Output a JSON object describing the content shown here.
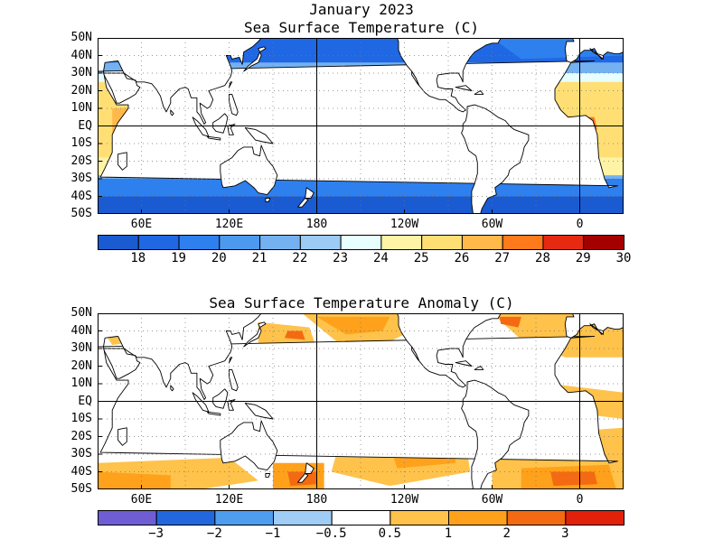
{
  "header": {
    "line1": "January 2023",
    "line2": "Sea Surface Temperature (C)"
  },
  "anomaly_title": "Sea Surface Temperature Anomaly (C)",
  "lat_labels": [
    "50N",
    "40N",
    "30N",
    "20N",
    "10N",
    "EQ",
    "10S",
    "20S",
    "30S",
    "40S",
    "50S"
  ],
  "lon_labels": [
    {
      "lon": 60,
      "text": "60E"
    },
    {
      "lon": 120,
      "text": "120E"
    },
    {
      "lon": 180,
      "text": "180"
    },
    {
      "lon": 240,
      "text": "120W"
    },
    {
      "lon": 300,
      "text": "60W"
    },
    {
      "lon": 360,
      "text": "0"
    }
  ],
  "map_extent": {
    "lon_min": 30,
    "lon_max": 390,
    "lat_min": -50,
    "lat_max": 50
  },
  "sst_colorbar": {
    "colors": [
      "#1a5bd1",
      "#2068e3",
      "#2e80ee",
      "#4c9aef",
      "#74b1f1",
      "#9ccbf5",
      "#e7ffff",
      "#fff4a6",
      "#ffdf74",
      "#ffb84a",
      "#ff7a1a",
      "#e62a12",
      "#a50000"
    ],
    "labels": [
      "18",
      "19",
      "20",
      "21",
      "22",
      "23",
      "24",
      "25",
      "26",
      "27",
      "28",
      "29",
      "30"
    ]
  },
  "anom_colorbar": {
    "colors": [
      "#6f5dd3",
      "#2267dd",
      "#4f9def",
      "#9fcdf6",
      "#ffffff",
      "#ffc24a",
      "#ffa11a",
      "#f36a12",
      "#e2210a"
    ],
    "labels": [
      "−3",
      "−2",
      "−1",
      "−0.5",
      "0.5",
      "1",
      "2",
      "3"
    ]
  }
}
